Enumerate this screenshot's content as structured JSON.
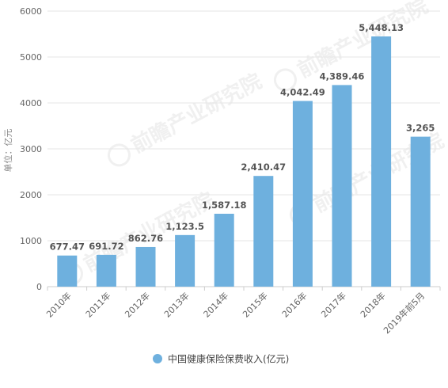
{
  "chart_data": {
    "type": "bar",
    "categories": [
      "2010年",
      "2011年",
      "2012年",
      "2013年",
      "2014年",
      "2015年",
      "2016年",
      "2017年",
      "2018年",
      "2019年前5月"
    ],
    "series": [
      {
        "name": "中国健康保险保费收入(亿元)",
        "values": [
          677.47,
          691.72,
          862.76,
          1123.5,
          1587.18,
          2410.47,
          4042.49,
          4389.46,
          5448.13,
          3265
        ],
        "labels": [
          "677.47",
          "691.72",
          "862.76",
          "1,123.5",
          "1,587.18",
          "2,410.47",
          "4,042.49",
          "4,389.46",
          "5,448.13",
          "3,265"
        ],
        "color": "#6eb0de"
      }
    ],
    "title": "",
    "xlabel": "",
    "ylabel": "单位：亿元",
    "ylim": [
      0,
      6000
    ],
    "yticks": [
      "0",
      "1000",
      "2000",
      "3000",
      "4000",
      "5000",
      "6000"
    ],
    "grid": true,
    "legend_position": "bottom"
  },
  "colors": {
    "bar": "#6eb0de",
    "grid": "#e6e6e6",
    "axis": "#cccccc"
  },
  "watermark_text": "前瞻产业研究院"
}
